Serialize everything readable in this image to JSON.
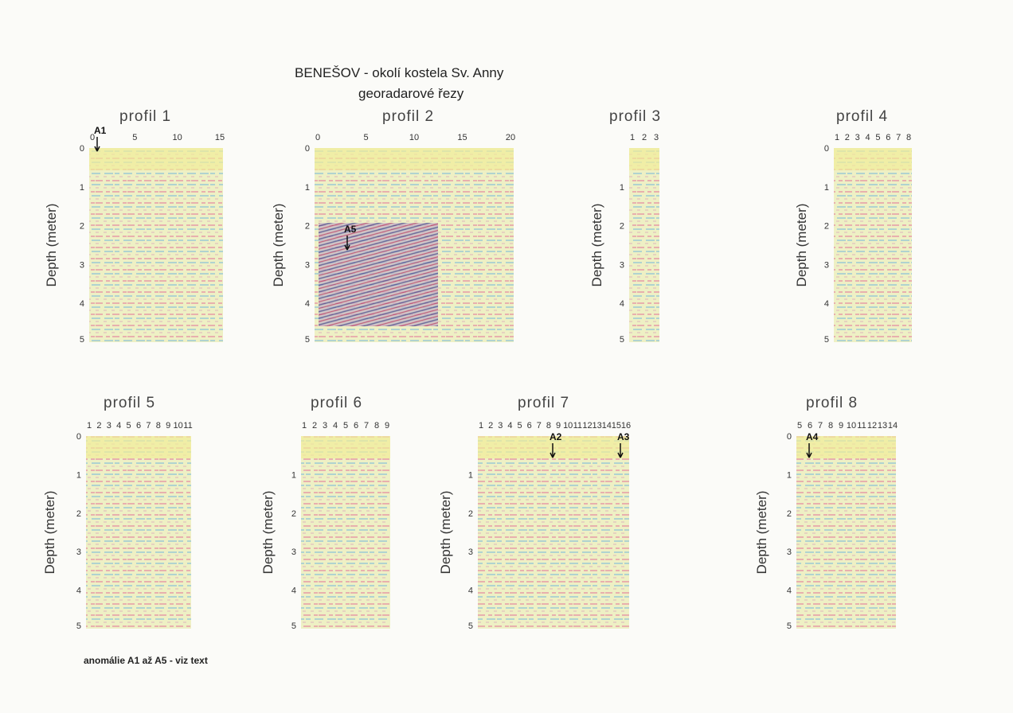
{
  "header": {
    "title": "BENEŠOV - okolí kostela Sv. Anny",
    "subtitle": "georadarové řezy"
  },
  "panels": [
    {
      "title": "profil 1",
      "xticks": [
        0,
        5,
        10,
        15
      ],
      "ylabel": "Depth (meter)",
      "yticks": [
        0,
        1,
        2,
        3,
        4,
        5
      ],
      "annotations": [
        "A1"
      ]
    },
    {
      "title": "profil 2",
      "xticks": [
        0,
        5,
        10,
        15,
        20
      ],
      "ylabel": "Depth (meter)",
      "yticks": [
        0,
        1,
        2,
        3,
        4,
        5
      ],
      "annotations": [
        "A5"
      ]
    },
    {
      "title": "profil 3",
      "xticks": [
        1,
        2,
        3
      ],
      "ylabel": "Depth (meter)",
      "yticks": [
        1,
        2,
        3,
        4,
        5
      ],
      "annotations": []
    },
    {
      "title": "profil 4",
      "xticks": [
        1,
        2,
        3,
        4,
        5,
        6,
        7,
        8
      ],
      "ylabel": "Depth (meter)",
      "yticks": [
        0,
        1,
        2,
        3,
        4,
        5
      ],
      "annotations": []
    },
    {
      "title": "profil 5",
      "xticks": [
        1,
        2,
        3,
        4,
        5,
        6,
        7,
        8,
        9,
        10,
        11
      ],
      "ylabel": "Depth (meter)",
      "yticks": [
        0,
        1,
        2,
        3,
        4,
        5
      ],
      "annotations": []
    },
    {
      "title": "profil 6",
      "xticks": [
        1,
        2,
        3,
        4,
        5,
        6,
        7,
        8,
        9
      ],
      "ylabel": "Depth (meter)",
      "yticks": [
        1,
        2,
        3,
        4,
        5
      ],
      "annotations": []
    },
    {
      "title": "profil 7",
      "xticks": [
        1,
        2,
        3,
        4,
        5,
        6,
        7,
        8,
        9,
        10,
        11,
        12,
        13,
        14,
        15,
        16
      ],
      "ylabel": "Depth (meter)",
      "yticks": [
        1,
        2,
        3,
        4,
        5
      ],
      "annotations": [
        "A2",
        "A3"
      ]
    },
    {
      "title": "profil 8",
      "xticks": [
        5,
        6,
        7,
        8,
        9,
        10,
        11,
        12,
        13,
        14
      ],
      "ylabel": "Depth (meter)",
      "yticks": [
        0,
        1,
        2,
        3,
        4,
        5
      ],
      "annotations": [
        "A4"
      ]
    }
  ],
  "footer": "anomálie A1 až A5 - viz text"
}
